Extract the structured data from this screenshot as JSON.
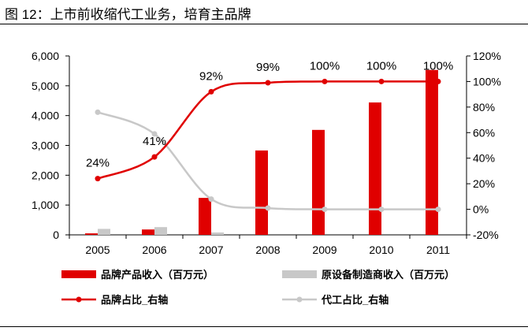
{
  "title": "图 12：上市前收缩代工业务，培育主品牌",
  "chart_data": {
    "type": "bar+line",
    "categories": [
      "2005",
      "2006",
      "2007",
      "2008",
      "2009",
      "2010",
      "2011"
    ],
    "left_axis": {
      "ylim": [
        0,
        6000
      ],
      "ticks": [
        0,
        1000,
        2000,
        3000,
        4000,
        5000,
        6000
      ],
      "tick_labels": [
        "0",
        "1,000",
        "2,000",
        "3,000",
        "4,000",
        "5,000",
        "6,000"
      ]
    },
    "right_axis": {
      "ylim": [
        -20,
        120
      ],
      "ticks": [
        -20,
        0,
        20,
        40,
        60,
        80,
        100,
        120
      ],
      "tick_labels": [
        "-20%",
        "0%",
        "20%",
        "40%",
        "60%",
        "80%",
        "100%",
        "120%"
      ]
    },
    "series": [
      {
        "name": "品牌产品收入（百万元）",
        "type": "bar",
        "axis": "left",
        "color": "#e00000",
        "values": [
          50,
          180,
          1240,
          2830,
          3520,
          4440,
          5530
        ]
      },
      {
        "name": "原设备制造商收入（百万元）",
        "type": "bar",
        "axis": "left",
        "color": "#c8c8c8",
        "values": [
          200,
          260,
          80,
          0,
          0,
          0,
          0
        ]
      },
      {
        "name": "品牌占比_右轴",
        "type": "line",
        "axis": "right",
        "color": "#e00000",
        "values": [
          24,
          41,
          92,
          99,
          100,
          100,
          100
        ],
        "data_labels": [
          "24%",
          "41%",
          "92%",
          "99%",
          "100%",
          "100%",
          "100%"
        ]
      },
      {
        "name": "代工占比_右轴",
        "type": "line",
        "axis": "right",
        "color": "#c8c8c8",
        "values": [
          76,
          59,
          8,
          1,
          0,
          0,
          0
        ]
      }
    ],
    "legend_position": "bottom",
    "grid": false
  }
}
